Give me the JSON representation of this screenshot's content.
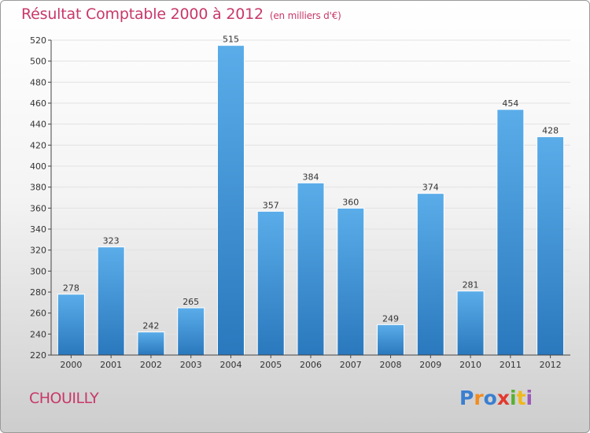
{
  "chart_data": {
    "type": "bar",
    "title": "Résultat Comptable 2000 à 2012",
    "unit_note": "(en milliers d'€)",
    "categories": [
      "2000",
      "2001",
      "2002",
      "2003",
      "2004",
      "2005",
      "2006",
      "2007",
      "2008",
      "2009",
      "2010",
      "2011",
      "2012"
    ],
    "values": [
      278,
      323,
      242,
      265,
      515,
      357,
      384,
      360,
      249,
      374,
      281,
      454,
      428
    ],
    "ylim": [
      220,
      520
    ],
    "ytick_step": 20,
    "grid": true,
    "xlabel": "",
    "ylabel": ""
  },
  "footer": {
    "city": "CHOUILLY",
    "brand_letters": [
      "P",
      "r",
      "o",
      "x",
      "i",
      "t",
      "i"
    ],
    "brand_colors": [
      "#3a7fd0",
      "#f28c1e",
      "#3a7fd0",
      "#e23a2e",
      "#58b031",
      "#f0b81c",
      "#9b59b6"
    ]
  },
  "colors": {
    "title": "#c8386a",
    "bar_top": "#5aade9",
    "bar_bottom": "#2a78bd",
    "grid": "#e2e2e2",
    "axis": "#444444"
  }
}
